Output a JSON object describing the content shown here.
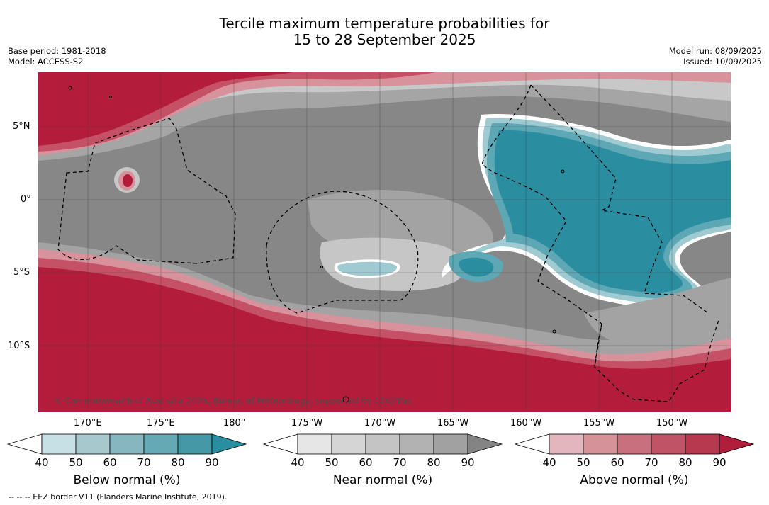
{
  "title_line1": "Tercile maximum temperature probabilities for",
  "title_line2": "15 to 28 September 2025",
  "base_period": "Base period: 1981-2018",
  "model": "Model: ACCESS-S2",
  "model_run": "Model run: 08/09/2025",
  "issued": "Issued: 10/09/2025",
  "credit": "© Commonwealth of Australia 2025, Bureau of Meteorology, supported by COSPPac",
  "footer": "--  --  -- EEZ border V11 (Flanders Marine Institute, 2019).",
  "lat_labels": [
    "5°N",
    "0°",
    "5°S",
    "10°S"
  ],
  "lon_labels": [
    "170°E",
    "175°E",
    "180°",
    "175°W",
    "170°W",
    "165°W",
    "160°W",
    "155°W",
    "150°W"
  ],
  "colorbars": [
    {
      "title": "Below normal (%)",
      "ticks": [
        "40",
        "50",
        "60",
        "70",
        "80",
        "90"
      ],
      "colors": [
        "#ffffff",
        "#c7e0e6",
        "#a7c8cd",
        "#86b7c0",
        "#65a9b5",
        "#4599a6",
        "#2a8ea1"
      ]
    },
    {
      "title": "Near normal (%)",
      "ticks": [
        "40",
        "50",
        "60",
        "70",
        "80",
        "90"
      ],
      "colors": [
        "#ffffff",
        "#e6e6e6",
        "#d5d5d5",
        "#c4c4c4",
        "#b2b2b2",
        "#a1a1a1",
        "#848484"
      ]
    },
    {
      "title": "Above normal (%)",
      "ticks": [
        "40",
        "50",
        "60",
        "70",
        "80",
        "90"
      ],
      "colors": [
        "#ffffff",
        "#e2b6bc",
        "#d69299",
        "#c8707d",
        "#c05466",
        "#b63950",
        "#b11e3c"
      ]
    }
  ],
  "map_colors": {
    "above_strong": "#b31d3b",
    "above_mid": "#c55166",
    "above_weak": "#d8929b",
    "near_strong": "#878787",
    "near_mid": "#a3a3a3",
    "near_weak": "#c6c6c6",
    "near_light": "#dcdcdc",
    "below_strong": "#2a8da0",
    "below_mid": "#5ea7b4",
    "below_weak": "#9fcad1"
  }
}
